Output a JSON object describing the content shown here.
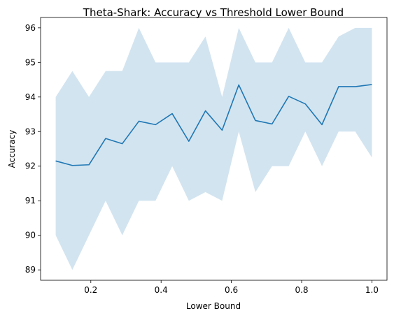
{
  "chart_data": {
    "type": "line",
    "title": "Theta-Shark: Accuracy vs Threshold Lower Bound",
    "xlabel": "Lower Bound",
    "ylabel": "Accuracy",
    "xlim": [
      0.057,
      1.043
    ],
    "ylim": [
      88.7,
      96.3
    ],
    "xticks": [
      0.2,
      0.4,
      0.6,
      0.8,
      1.0
    ],
    "xtick_labels": [
      "0.2",
      "0.4",
      "0.6",
      "0.8",
      "1.0"
    ],
    "yticks": [
      89,
      90,
      91,
      92,
      93,
      94,
      95,
      96
    ],
    "ytick_labels": [
      "89",
      "90",
      "91",
      "92",
      "93",
      "94",
      "95",
      "96"
    ],
    "grid": false,
    "colors": {
      "line": "#1f77b4",
      "band": "#1f77b4"
    },
    "band_opacity": 0.2,
    "series": [
      {
        "x": [
          0.1,
          0.1474,
          0.1947,
          0.2421,
          0.2895,
          0.3368,
          0.3842,
          0.4316,
          0.4789,
          0.5263,
          0.5737,
          0.6211,
          0.6684,
          0.7158,
          0.7632,
          0.8105,
          0.8579,
          0.9053,
          0.9526,
          1.0
        ],
        "mean": [
          92.15,
          92.02,
          92.04,
          92.8,
          92.65,
          93.3,
          93.2,
          93.52,
          92.72,
          93.6,
          93.04,
          94.35,
          93.32,
          93.22,
          94.02,
          93.8,
          93.2,
          94.3,
          94.3,
          94.36
        ],
        "lower": [
          90.0,
          89.0,
          90.0,
          91.0,
          90.0,
          91.0,
          91.0,
          92.0,
          91.0,
          91.25,
          91.0,
          93.0,
          91.25,
          92.0,
          92.0,
          93.0,
          92.0,
          93.0,
          93.0,
          92.25
        ],
        "upper": [
          94.0,
          94.75,
          94.0,
          94.75,
          94.75,
          96.0,
          95.0,
          95.0,
          95.0,
          95.75,
          94.0,
          96.0,
          95.0,
          95.0,
          96.0,
          95.0,
          95.0,
          95.75,
          96.0,
          96.0
        ]
      }
    ]
  }
}
